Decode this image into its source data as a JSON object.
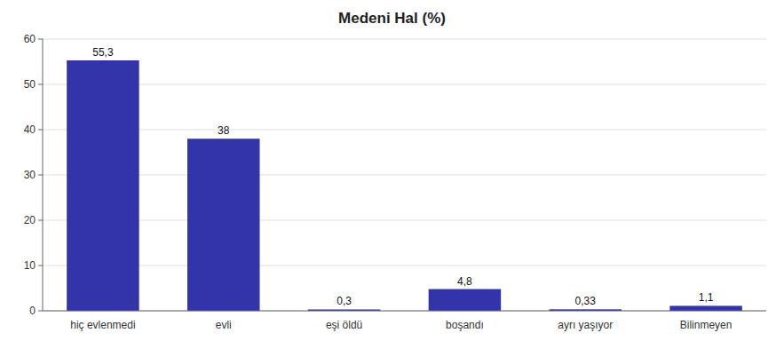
{
  "chart_data": {
    "type": "bar",
    "title": "Medeni Hal (%)",
    "categories": [
      "hiç evlenmedi",
      "evli",
      "eşi öldü",
      "boşandı",
      "ayrı yaşıyor",
      "Bilinmeyen"
    ],
    "values": [
      55.3,
      38,
      0.3,
      4.8,
      0.33,
      1.1
    ],
    "value_labels": [
      "55,3",
      "38",
      "0,3",
      "4,8",
      "0,33",
      "1,1"
    ],
    "data_labels": true,
    "color": "#3333aa",
    "ylim": [
      0,
      60
    ],
    "yticks": [
      0,
      10,
      20,
      30,
      40,
      50,
      60
    ],
    "grid": true
  }
}
